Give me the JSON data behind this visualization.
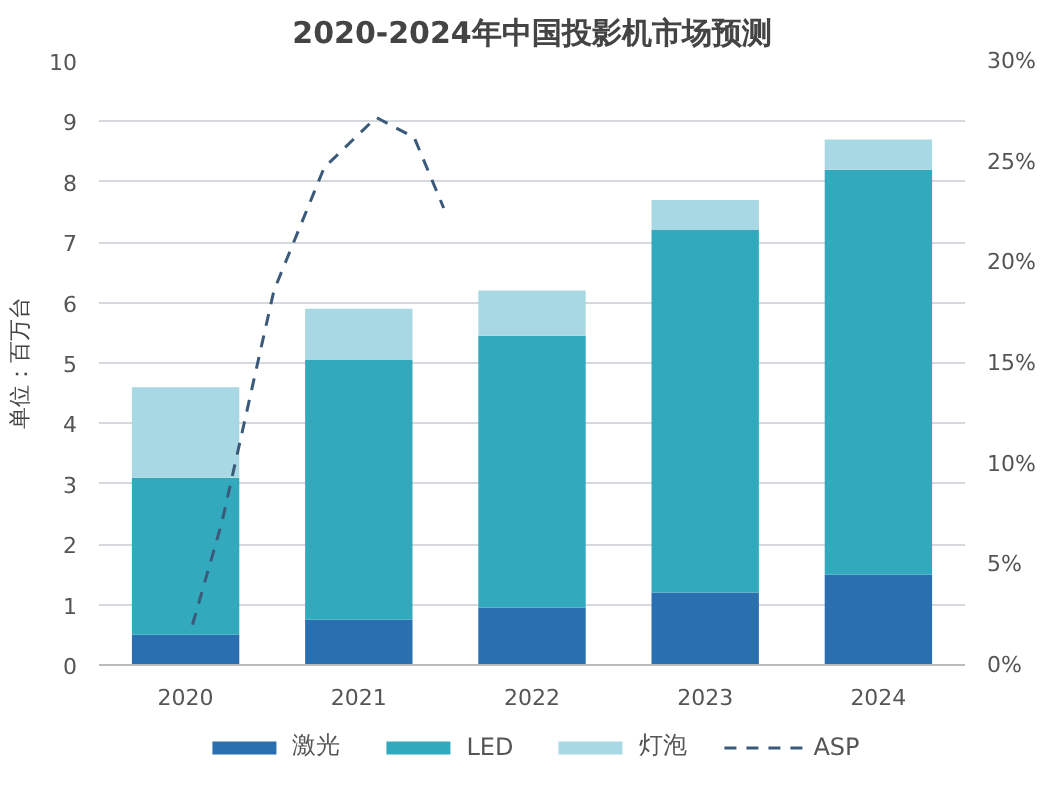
{
  "chart_data": {
    "type": "bar",
    "title": "2020-2024年中国投影机市场预测",
    "ylabel": "单位：百万台",
    "x": [
      2020,
      2021,
      2022,
      2023,
      2024
    ],
    "xlim": [
      2019.5,
      2024.5
    ],
    "xticks": [
      2020,
      2021,
      2022,
      2023,
      2024
    ],
    "ylim": [
      0,
      10
    ],
    "yticks": [
      0,
      1,
      2,
      3,
      4,
      5,
      6,
      7,
      8,
      9,
      10
    ],
    "y2lim": [
      0,
      30
    ],
    "y2ticks": [
      {
        "value": 0,
        "label": "0%"
      },
      {
        "value": 5,
        "label": "5%"
      },
      {
        "value": 10,
        "label": "10%"
      },
      {
        "value": 15,
        "label": "15%"
      },
      {
        "value": 20,
        "label": "20%"
      },
      {
        "value": 25,
        "label": "25%"
      },
      {
        "value": 30,
        "label": "30%"
      }
    ],
    "stacked": true,
    "grid": "y",
    "legend": "bottom",
    "series": [
      {
        "name": "激光",
        "color": "#2a6fb0",
        "values": [
          0.5,
          0.75,
          0.95,
          1.2,
          1.5
        ]
      },
      {
        "name": "LED",
        "color": "#33a9bd",
        "values": [
          2.6,
          4.3,
          4.5,
          6.0,
          6.7
        ]
      },
      {
        "name": "灯泡",
        "color": "#a8d8e3",
        "values": [
          1.5,
          0.85,
          0.75,
          0.5,
          0.5
        ]
      },
      {
        "name": "ASP",
        "color": "#3b5a7a",
        "type": "line",
        "axis": "y2",
        "line_style": "dashed",
        "x": [
          2020.04,
          2020.21,
          2020.51,
          2020.8,
          2021.1,
          2021.32,
          2021.49
        ],
        "values": [
          2,
          7.1,
          18.6,
          24.7,
          27.2,
          26.2,
          22.7
        ]
      }
    ]
  }
}
